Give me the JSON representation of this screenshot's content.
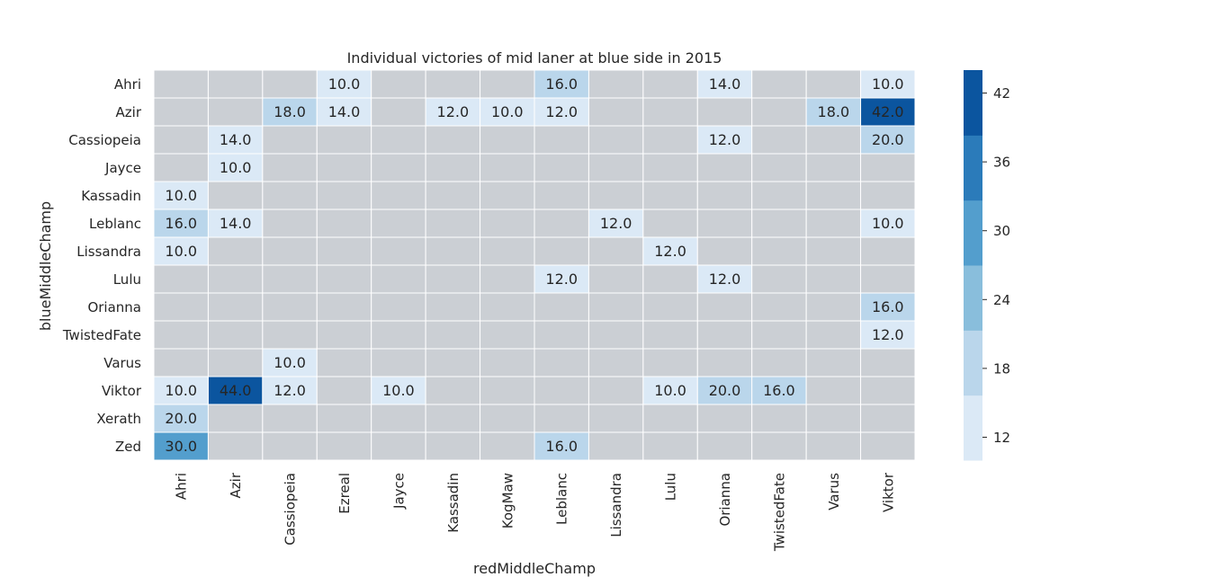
{
  "chart_data": {
    "type": "heatmap",
    "title": "Individual victories of mid laner at blue side in 2015",
    "xlabel": "redMiddleChamp",
    "ylabel": "blueMiddleChamp",
    "x_categories": [
      "Ahri",
      "Azir",
      "Cassiopeia",
      "Ezreal",
      "Jayce",
      "Kassadin",
      "KogMaw",
      "Leblanc",
      "Lissandra",
      "Lulu",
      "Orianna",
      "TwistedFate",
      "Varus",
      "Viktor"
    ],
    "y_categories": [
      "Ahri",
      "Azir",
      "Cassiopeia",
      "Jayce",
      "Kassadin",
      "Leblanc",
      "Lissandra",
      "Lulu",
      "Orianna",
      "TwistedFate",
      "Varus",
      "Viktor",
      "Xerath",
      "Zed"
    ],
    "values": [
      [
        null,
        null,
        null,
        10.0,
        null,
        null,
        null,
        16.0,
        null,
        null,
        14.0,
        null,
        null,
        10.0
      ],
      [
        null,
        null,
        18.0,
        14.0,
        null,
        12.0,
        10.0,
        12.0,
        null,
        null,
        null,
        null,
        18.0,
        42.0
      ],
      [
        null,
        14.0,
        null,
        null,
        null,
        null,
        null,
        null,
        null,
        null,
        12.0,
        null,
        null,
        20.0
      ],
      [
        null,
        10.0,
        null,
        null,
        null,
        null,
        null,
        null,
        null,
        null,
        null,
        null,
        null,
        null
      ],
      [
        10.0,
        null,
        null,
        null,
        null,
        null,
        null,
        null,
        null,
        null,
        null,
        null,
        null,
        null
      ],
      [
        16.0,
        14.0,
        null,
        null,
        null,
        null,
        null,
        null,
        12.0,
        null,
        null,
        null,
        null,
        10.0
      ],
      [
        10.0,
        null,
        null,
        null,
        null,
        null,
        null,
        null,
        null,
        12.0,
        null,
        null,
        null,
        null
      ],
      [
        null,
        null,
        null,
        null,
        null,
        null,
        null,
        12.0,
        null,
        null,
        12.0,
        null,
        null,
        null
      ],
      [
        null,
        null,
        null,
        null,
        null,
        null,
        null,
        null,
        null,
        null,
        null,
        null,
        null,
        16.0
      ],
      [
        null,
        null,
        null,
        null,
        null,
        null,
        null,
        null,
        null,
        null,
        null,
        null,
        null,
        12.0
      ],
      [
        null,
        null,
        10.0,
        null,
        null,
        null,
        null,
        null,
        null,
        null,
        null,
        null,
        null,
        null
      ],
      [
        10.0,
        44.0,
        12.0,
        null,
        10.0,
        null,
        null,
        null,
        null,
        10.0,
        20.0,
        16.0,
        null,
        null
      ],
      [
        20.0,
        null,
        null,
        null,
        null,
        null,
        null,
        null,
        null,
        null,
        null,
        null,
        null,
        null
      ],
      [
        30.0,
        null,
        null,
        null,
        null,
        null,
        null,
        16.0,
        null,
        null,
        null,
        null,
        null,
        null
      ]
    ],
    "colorbar": {
      "ticks": [
        12,
        18,
        24,
        30,
        36,
        42
      ],
      "range": [
        10,
        44
      ],
      "colors": [
        "#dbe9f6",
        "#bad6eb",
        "#89bedc",
        "#539ecd",
        "#2b7bba",
        "#0b559f"
      ]
    },
    "missing_color": "#cbcfd4",
    "value_format": "0.0",
    "grid": false,
    "legend": "none"
  }
}
